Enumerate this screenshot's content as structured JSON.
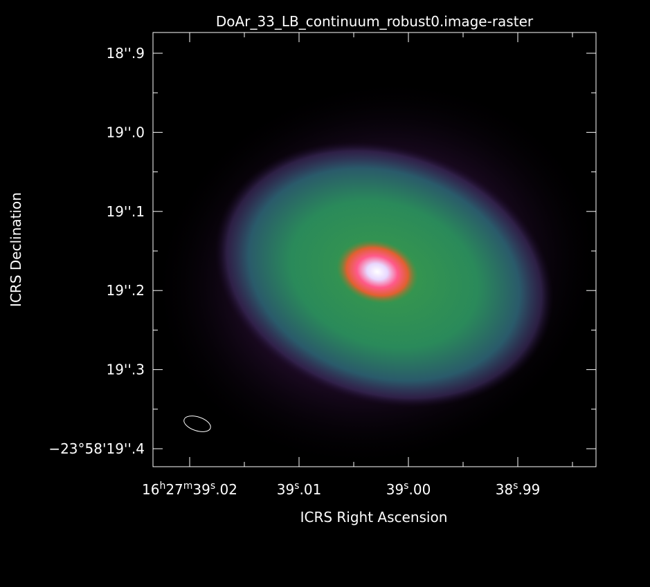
{
  "title": "DoAr_33_LB_continuum_robust0.image-raster",
  "x_axis": {
    "label": "ICRS Right Ascension",
    "ticks": [
      "16h27m39s.02",
      "39s.01",
      "39s.00",
      "38s.99"
    ]
  },
  "y_axis": {
    "label": "ICRS Declination",
    "ticks": [
      "18''.9",
      "19''.0",
      "19''.1",
      "19''.2",
      "19''.3",
      "−23°58'19''.4"
    ]
  }
}
